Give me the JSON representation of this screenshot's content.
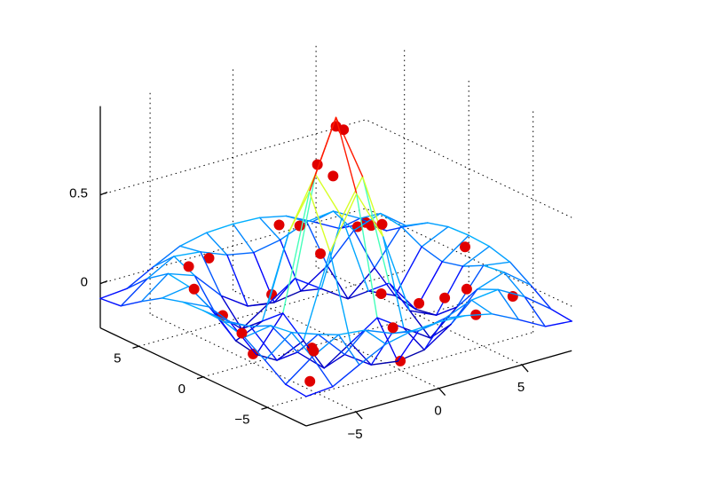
{
  "chart_data": {
    "type": "surface",
    "colormap": "jet",
    "grid": true,
    "x": [
      -8,
      -6.4,
      -4.8,
      -3.2,
      -1.6,
      0,
      1.6,
      3.2,
      4.8,
      6.4,
      8
    ],
    "y": [
      -8,
      -6.4,
      -4.8,
      -3.2,
      -1.6,
      0,
      1.6,
      3.2,
      4.8,
      6.4,
      8
    ],
    "z": [
      [
        -0.084,
        -0.071,
        0.01,
        0.084,
        0.117,
        0.124,
        0.117,
        0.084,
        0.01,
        -0.071,
        -0.084
      ],
      [
        -0.071,
        0.041,
        0.124,
        0.107,
        0.047,
        0.018,
        0.047,
        0.107,
        0.124,
        0.041,
        -0.071
      ],
      [
        0.01,
        0.124,
        0.071,
        -0.085,
        -0.186,
        -0.208,
        -0.186,
        -0.085,
        0.071,
        0.124,
        0.01
      ],
      [
        0.084,
        0.107,
        -0.085,
        -0.217,
        -0.118,
        -0.018,
        -0.118,
        -0.217,
        -0.085,
        0.107,
        0.084
      ],
      [
        0.117,
        0.047,
        -0.186,
        -0.118,
        0.34,
        0.625,
        0.34,
        -0.118,
        -0.186,
        0.047,
        0.117
      ],
      [
        0.124,
        0.018,
        -0.208,
        -0.018,
        0.625,
        1,
        0.625,
        -0.018,
        -0.208,
        0.018,
        0.124
      ],
      [
        0.117,
        0.047,
        -0.186,
        -0.118,
        0.34,
        0.625,
        0.34,
        -0.118,
        -0.186,
        0.047,
        0.117
      ],
      [
        0.084,
        0.107,
        -0.085,
        -0.217,
        -0.118,
        -0.018,
        -0.118,
        -0.217,
        -0.085,
        0.107,
        0.084
      ],
      [
        0.01,
        0.124,
        0.071,
        -0.085,
        -0.186,
        -0.208,
        -0.186,
        -0.085,
        0.071,
        0.124,
        0.01
      ],
      [
        -0.071,
        0.041,
        0.124,
        0.107,
        0.047,
        0.018,
        0.047,
        0.107,
        0.124,
        0.041,
        -0.071
      ],
      [
        -0.084,
        -0.071,
        0.01,
        0.084,
        0.117,
        0.124,
        0.117,
        0.084,
        0.01,
        -0.071,
        -0.084
      ]
    ],
    "points": {
      "color": "#e00000",
      "x": [
        0,
        0.3,
        -0.5,
        0.6,
        -1.8,
        2,
        1,
        -3,
        3.5,
        -4.5,
        5,
        -6,
        6,
        -7,
        7,
        2,
        -2,
        4,
        -5,
        8,
        7.5,
        -8,
        3,
        -3,
        0,
        5,
        -5,
        0,
        -7,
        6
      ],
      "y": [
        0,
        -0.2,
        0.8,
        1,
        0.5,
        -1,
        2.5,
        -2,
        1,
        3,
        -2,
        -6,
        5,
        2,
        -1,
        7,
        -7,
        -5,
        5,
        8,
        8,
        -3,
        -7,
        6,
        -5,
        0,
        0,
        5,
        -7,
        -6
      ],
      "z": [
        0.95,
        0.93,
        0.72,
        0.62,
        0.42,
        0.38,
        0.12,
        -0.15,
        -0.12,
        -0.1,
        -0.08,
        0.05,
        0.06,
        0.15,
        0.12,
        0.1,
        0.11,
        0.1,
        0.12,
        -0.08,
        -0.09,
        0.1,
        0.05,
        0.08,
        -0.2,
        -0.18,
        -0.2,
        -0.17,
        -0.06,
        0.04
      ]
    },
    "xlim": [
      -8,
      8
    ],
    "ylim": [
      -8,
      8
    ],
    "zlim": [
      -0.25,
      1
    ],
    "xticks": [
      {
        "value": -5,
        "label": "−5"
      },
      0,
      5
    ],
    "yticks": [
      {
        "value": -5,
        "label": "−5"
      },
      0,
      5
    ],
    "zticks": [
      0,
      0.5
    ]
  }
}
